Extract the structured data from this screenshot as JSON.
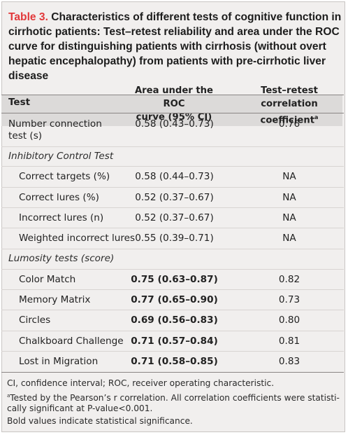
{
  "table": {
    "caption_number": "Table 3.",
    "caption_text": "Characteristics of different tests of cognitive function in cirrhotic patients: Test–retest reliability and area under the ROC curve for distinguishing patients with cirrhosis (without overt hepatic encephalopathy) from patients with pre-cirrhotic liver disease",
    "headers": {
      "test": "Test",
      "auc_line1": "Area under the ROC",
      "auc_line2": "curve (95% CI)",
      "corr_line1": "Test–retest correlation",
      "corr_line2": "coefficient",
      "corr_sup": "a"
    },
    "rows": [
      {
        "label_line1": "Number connection",
        "label_line2": "test (s)",
        "auc": "0.58 (0.43–0.73)",
        "corr": "0.76",
        "bold": false
      },
      {
        "section": "Inhibitory Control Test"
      },
      {
        "label": "Correct targets (%)",
        "auc": "0.58 (0.44–0.73)",
        "corr": "NA",
        "bold": false
      },
      {
        "label": "Correct lures (%)",
        "auc": "0.52 (0.37–0.67)",
        "corr": "NA",
        "bold": false
      },
      {
        "label": "Incorrect lures (n)",
        "auc": "0.52 (0.37–0.67)",
        "corr": "NA",
        "bold": false
      },
      {
        "label": "Weighted incorrect lures",
        "auc": "0.55 (0.39–0.71)",
        "corr": "NA",
        "bold": false
      },
      {
        "section": "Lumosity tests (score)"
      },
      {
        "label": "Color Match",
        "auc": "0.75 (0.63–0.87)",
        "corr": "0.82",
        "bold": true
      },
      {
        "label": "Memory Matrix",
        "auc": "0.77 (0.65–0.90)",
        "corr": "0.73",
        "bold": true
      },
      {
        "label": "Circles",
        "auc": "0.69 (0.56–0.83)",
        "corr": "0.80",
        "bold": true
      },
      {
        "label": "Chalkboard Challenge",
        "auc": "0.71 (0.57–0.84)",
        "corr": "0.81",
        "bold": true
      },
      {
        "label": "Lost in Migration",
        "auc": "0.71 (0.58–0.85)",
        "corr": "0.83",
        "bold": true
      }
    ],
    "footnotes": {
      "line1": "CI, confidence interval; ROC, receiver operating characteristic.",
      "sup": "a",
      "line2": "Tested by the Pearson’s r correlation. All correlation coefficients were statisti-",
      "line3": "cally significant at P-value<0.001.",
      "line4": "Bold values indicate statistical significance."
    }
  }
}
